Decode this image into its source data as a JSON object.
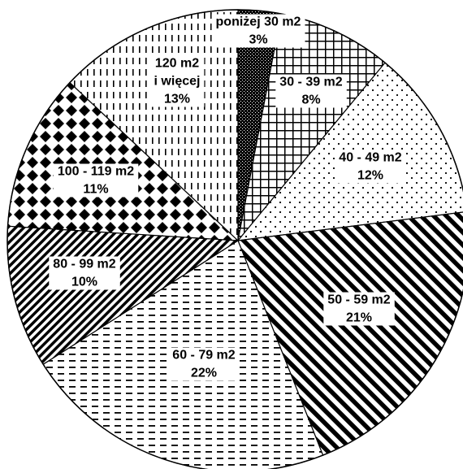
{
  "chart_data": {
    "type": "pie",
    "title": "",
    "start_angle_deg": 0,
    "direction": "clockwise",
    "slices": [
      {
        "label": "poniżej 30 m2",
        "lines": [
          "poniżej 30 m2",
          "3%"
        ],
        "value": 3,
        "pattern": "dense-dots"
      },
      {
        "label": "30 - 39 m2",
        "lines": [
          "30 - 39 m2",
          "8%"
        ],
        "value": 8,
        "pattern": "grid"
      },
      {
        "label": "40 - 49 m2",
        "lines": [
          "40 - 49 m2",
          "12%"
        ],
        "value": 12,
        "pattern": "sparse-dots"
      },
      {
        "label": "50 - 59 m2",
        "lines": [
          "50 - 59 m2",
          "21%"
        ],
        "value": 21,
        "pattern": "wide-diagonal"
      },
      {
        "label": "60 - 79 m2",
        "lines": [
          "60 - 79 m2",
          "22%"
        ],
        "value": 22,
        "pattern": "horizontal-dashes"
      },
      {
        "label": "80 - 99 m2",
        "lines": [
          "80 - 99 m2",
          "10%"
        ],
        "value": 10,
        "pattern": "narrow-diagonal"
      },
      {
        "label": "100 - 119 m2",
        "lines": [
          "100 - 119 m2",
          "11%"
        ],
        "value": 11,
        "pattern": "diamonds"
      },
      {
        "label": "120 m2 i więcej",
        "lines": [
          "120 m2",
          "i więcej",
          "13%"
        ],
        "value": 13,
        "pattern": "vertical-dashes"
      }
    ]
  }
}
